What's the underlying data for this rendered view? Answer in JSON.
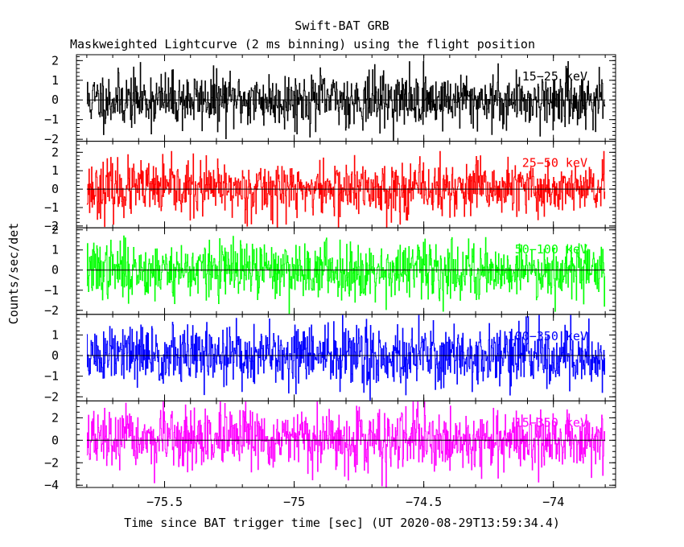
{
  "title": "Swift-BAT GRB",
  "subtitle": "Maskweighted Lightcurve (2 ms binning) using the flight position",
  "colors": {
    "axis": "#000000",
    "background": "#ffffff"
  },
  "chart_data": {
    "type": "line",
    "style": "histogram-step",
    "xlabel": "Time since BAT trigger time [sec] (UT 2020-08-29T13:59:34.4)",
    "ylabel": "Counts/sec/det",
    "xlim": [
      -75.84,
      -73.76
    ],
    "xticks": [
      -75.5,
      -75,
      -74.5,
      -74
    ],
    "xtick_labels": [
      "−75.5",
      "−75",
      "−74.5",
      "−74"
    ],
    "data_x_range": [
      -75.8,
      -73.8
    ],
    "bin_width_sec": 0.002,
    "n_bins": 1000,
    "grid": false,
    "panels": [
      {
        "name": "15–25 keV",
        "label": "15−25 keV",
        "color": "#000000",
        "ylim": [
          -2.1,
          2.3
        ],
        "yticks": [
          -2,
          -1,
          0,
          1,
          2
        ],
        "amplitude": 0.7,
        "peak_clip": 1.95,
        "seed": 11
      },
      {
        "name": "25–50 keV",
        "label": "25−50 keV",
        "color": "#ff0000",
        "ylim": [
          -2.1,
          2.6
        ],
        "yticks": [
          -2,
          -1,
          0,
          1,
          2
        ],
        "amplitude": 0.75,
        "peak_clip": 2.05,
        "seed": 23
      },
      {
        "name": "50–100 keV",
        "label": "50−100 keV",
        "color": "#00ff00",
        "ylim": [
          -2.2,
          2.1
        ],
        "yticks": [
          -2,
          -1,
          0,
          1,
          2
        ],
        "amplitude": 0.7,
        "peak_clip": 1.95,
        "seed": 37
      },
      {
        "name": "100–350 keV",
        "label": "100−350 keV",
        "color": "#0000ff",
        "ylim": [
          -2.2,
          2.0
        ],
        "yticks": [
          -2,
          -1,
          0,
          1
        ],
        "amplitude": 0.75,
        "peak_clip": 1.95,
        "seed": 51
      },
      {
        "name": "15–350 keV",
        "label": "15−350 keV",
        "color": "#ff00ff",
        "ylim": [
          -4.2,
          3.5
        ],
        "yticks": [
          -4,
          -2,
          0,
          2
        ],
        "amplitude": 1.3,
        "peak_clip": 3.4,
        "seed": 67
      }
    ]
  }
}
